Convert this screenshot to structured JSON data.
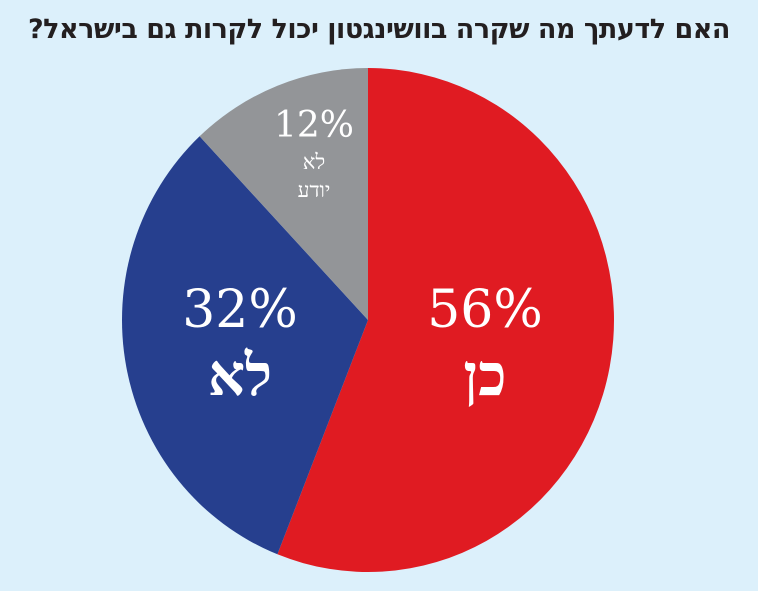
{
  "title": "האם לדעתך מה שקרה בוושינגטון יכול לקרות גם בישראל?",
  "colors": {
    "background": "#dcf0fb",
    "yes": "#e01b22",
    "no": "#263f8e",
    "dont_know": "#939598",
    "label": "#ffffff"
  },
  "slices": {
    "yes": {
      "pct": "56%",
      "label": "כן"
    },
    "no": {
      "pct": "32%",
      "label": "לא"
    },
    "dont_know": {
      "pct": "12%",
      "label_line1": "לא",
      "label_line2": "יודע"
    }
  },
  "chart_data": {
    "type": "pie",
    "title": "האם לדעתך מה שקרה בוושינגטון יכול לקרות גם בישראל?",
    "categories": [
      "כן",
      "לא",
      "לא יודע"
    ],
    "values": [
      56,
      32,
      12
    ],
    "unit": "%",
    "colors": [
      "#e01b22",
      "#263f8e",
      "#939598"
    ],
    "start_angle": "12 o'clock, clockwise",
    "legend": "none (labels inside slices)"
  }
}
